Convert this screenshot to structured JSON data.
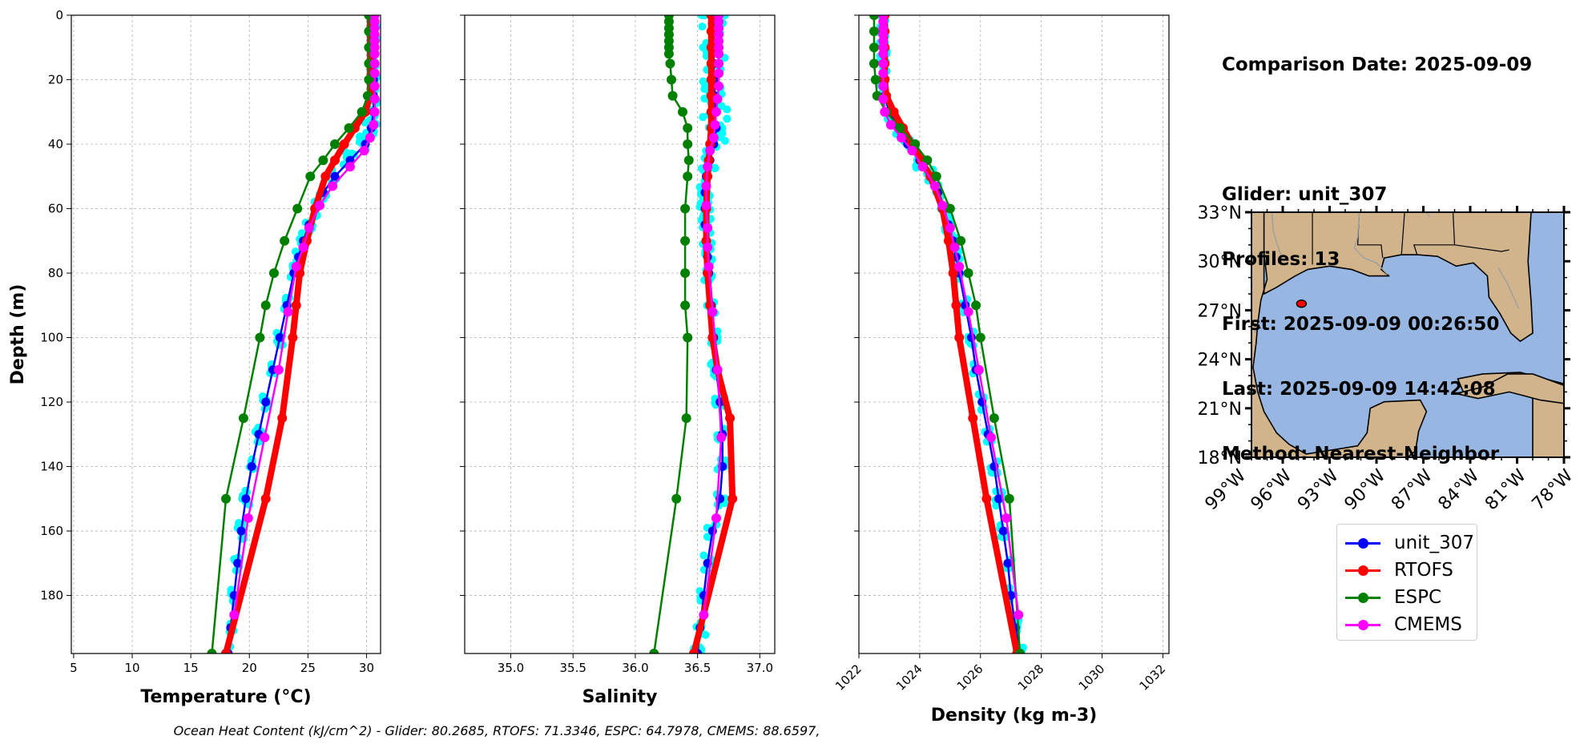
{
  "info": {
    "comparison": "Comparison Date: 2025-09-09",
    "glider": "Glider: unit_307",
    "profiles": "Profiles: 13",
    "first": "First: 2025-09-09 00:26:50",
    "last": "Last: 2025-09-09 14:42:08",
    "method": "Method: Nearest-Neighbor"
  },
  "footer": "Ocean Heat Content (kJ/cm^2) - Glider: 80.2685,  RTOFS: 71.3346,  ESPC: 64.7978,  CMEMS: 88.6597,",
  "colors": {
    "glider_scatter": "#00ffff",
    "unit_307": "#0000ff",
    "RTOFS": "#ff0000",
    "ESPC": "#008000",
    "CMEMS": "#ff00ff",
    "land": "#d2b48c",
    "ocean": "#97b6e1",
    "rivers": "#a0a0a0"
  },
  "legend": [
    "unit_307",
    "RTOFS",
    "ESPC",
    "CMEMS"
  ],
  "map": {
    "lat_labels": [
      "33°N",
      "30°N",
      "27°N",
      "24°N",
      "21°N",
      "18°N"
    ],
    "lon_labels": [
      "99°W",
      "96°W",
      "93°W",
      "90°W",
      "87°W",
      "84°W",
      "81°W",
      "78°W"
    ],
    "extent": {
      "lon": [
        -98,
        -78
      ],
      "lat": [
        18,
        33
      ]
    },
    "glider_position": {
      "lon": -94.8,
      "lat": 27.4
    }
  },
  "chart_data": [
    {
      "type": "line",
      "xlabel": "Temperature (°C)",
      "ylabel": "Depth (m)",
      "xlim": [
        4.8,
        31.2
      ],
      "ylim": [
        198,
        0
      ],
      "xticks": [
        "5",
        "10",
        "15",
        "20",
        "25",
        "30"
      ],
      "yticks": [
        "0",
        "20",
        "40",
        "60",
        "80",
        "100",
        "120",
        "140",
        "160",
        "180"
      ],
      "grid": true,
      "series": [
        {
          "name": "unit_307",
          "depth": [
            0,
            5,
            10,
            15,
            20,
            25,
            30,
            35,
            40,
            45,
            50,
            55,
            60,
            65,
            70,
            75,
            80,
            90,
            100,
            110,
            120,
            130,
            140,
            150,
            160,
            170,
            180,
            190,
            198
          ],
          "values": [
            30.6,
            30.6,
            30.6,
            30.6,
            30.6,
            30.6,
            30.6,
            30.4,
            29.9,
            28.6,
            27.3,
            26.3,
            25.6,
            25.1,
            24.6,
            24.2,
            23.8,
            23.2,
            22.6,
            22.0,
            21.4,
            20.8,
            20.2,
            19.7,
            19.3,
            19.0,
            18.7,
            18.4,
            18.2
          ]
        },
        {
          "name": "RTOFS",
          "depth": [
            0,
            5,
            10,
            15,
            20,
            25,
            30,
            35,
            40,
            45,
            50,
            60,
            70,
            80,
            90,
            100,
            125,
            150,
            198
          ],
          "values": [
            30.3,
            30.3,
            30.3,
            30.3,
            30.3,
            30.3,
            29.9,
            29.0,
            28.1,
            27.3,
            26.5,
            25.6,
            24.9,
            24.3,
            24.0,
            23.7,
            22.8,
            21.4,
            18.0
          ]
        },
        {
          "name": "ESPC",
          "depth": [
            0,
            5,
            10,
            15,
            20,
            25,
            30,
            35,
            40,
            45,
            50,
            60,
            70,
            80,
            90,
            100,
            125,
            150,
            198
          ],
          "values": [
            30.2,
            30.2,
            30.2,
            30.2,
            30.2,
            30.1,
            29.6,
            28.5,
            27.3,
            26.3,
            25.2,
            24.1,
            23.0,
            22.1,
            21.4,
            20.9,
            19.5,
            18.0,
            16.8
          ]
        },
        {
          "name": "CMEMS",
          "depth": [
            0,
            2,
            4,
            6,
            8,
            10,
            12,
            15,
            18,
            22,
            26,
            30,
            34,
            38,
            42,
            47,
            53,
            59,
            66,
            72,
            78,
            92,
            110,
            131,
            156,
            186
          ],
          "values": [
            30.7,
            30.7,
            30.7,
            30.7,
            30.7,
            30.7,
            30.7,
            30.7,
            30.7,
            30.7,
            30.7,
            30.7,
            30.6,
            30.3,
            29.8,
            28.6,
            27.1,
            26.0,
            25.1,
            24.6,
            24.0,
            23.3,
            22.5,
            21.3,
            19.9,
            18.7
          ]
        }
      ]
    },
    {
      "type": "line",
      "xlabel": "Salinity",
      "ylabel": "",
      "xlim": [
        34.63,
        37.12
      ],
      "ylim": [
        198,
        0
      ],
      "xticks": [
        "35.0",
        "35.5",
        "36.0",
        "36.5",
        "37.0"
      ],
      "grid": true,
      "series": [
        {
          "name": "unit_307",
          "depth": [
            0,
            5,
            10,
            15,
            20,
            25,
            30,
            35,
            40,
            45,
            50,
            55,
            60,
            65,
            70,
            75,
            80,
            90,
            100,
            110,
            120,
            130,
            140,
            150,
            160,
            170,
            180,
            190,
            198
          ],
          "values": [
            36.63,
            36.63,
            36.63,
            36.63,
            36.63,
            36.64,
            36.64,
            36.65,
            36.63,
            36.6,
            36.57,
            36.56,
            36.56,
            36.56,
            36.57,
            36.58,
            36.59,
            36.61,
            36.63,
            36.65,
            36.68,
            36.7,
            36.7,
            36.68,
            36.62,
            36.58,
            36.55,
            36.52,
            36.5
          ]
        },
        {
          "name": "RTOFS",
          "depth": [
            0,
            5,
            10,
            15,
            20,
            25,
            30,
            35,
            40,
            45,
            50,
            60,
            70,
            80,
            90,
            100,
            110,
            125,
            150,
            198
          ],
          "values": [
            36.61,
            36.61,
            36.61,
            36.61,
            36.61,
            36.61,
            36.61,
            36.61,
            36.6,
            36.59,
            36.58,
            36.57,
            36.57,
            36.58,
            36.6,
            36.62,
            36.66,
            36.76,
            36.78,
            36.47
          ]
        },
        {
          "name": "ESPC",
          "depth": [
            0,
            2,
            4,
            6,
            8,
            10,
            12,
            15,
            20,
            25,
            30,
            35,
            40,
            45,
            50,
            60,
            70,
            80,
            90,
            100,
            125,
            150,
            198
          ],
          "values": [
            36.27,
            36.27,
            36.27,
            36.27,
            36.27,
            36.27,
            36.27,
            36.28,
            36.29,
            36.3,
            36.38,
            36.42,
            36.42,
            36.43,
            36.42,
            36.4,
            36.4,
            36.4,
            36.4,
            36.42,
            36.41,
            36.33,
            36.15
          ]
        },
        {
          "name": "CMEMS",
          "depth": [
            0,
            2,
            4,
            6,
            8,
            10,
            12,
            15,
            18,
            22,
            26,
            30,
            34,
            38,
            42,
            47,
            53,
            59,
            66,
            72,
            78,
            92,
            110,
            131,
            156,
            186
          ],
          "values": [
            36.67,
            36.67,
            36.67,
            36.67,
            36.67,
            36.67,
            36.67,
            36.67,
            36.67,
            36.67,
            36.66,
            36.65,
            36.64,
            36.63,
            36.6,
            36.58,
            36.57,
            36.57,
            36.58,
            36.58,
            36.59,
            36.62,
            36.66,
            36.69,
            36.65,
            36.55
          ]
        }
      ]
    },
    {
      "type": "line",
      "xlabel": "Density (kg m-3)",
      "ylabel": "",
      "xlim": [
        1022,
        1032.2
      ],
      "ylim": [
        198,
        0
      ],
      "xticks": [
        "1022",
        "1024",
        "1026",
        "1028",
        "1030",
        "1032"
      ],
      "grid": true,
      "series": [
        {
          "name": "unit_307",
          "depth": [
            0,
            5,
            10,
            15,
            20,
            25,
            30,
            35,
            40,
            45,
            50,
            55,
            60,
            65,
            70,
            75,
            80,
            90,
            100,
            110,
            120,
            130,
            140,
            150,
            160,
            170,
            180,
            190,
            198
          ],
          "values": [
            1022.8,
            1022.8,
            1022.8,
            1022.8,
            1022.8,
            1022.85,
            1023.0,
            1023.3,
            1023.6,
            1024.0,
            1024.35,
            1024.6,
            1024.8,
            1024.95,
            1025.1,
            1025.2,
            1025.3,
            1025.5,
            1025.7,
            1025.85,
            1026.05,
            1026.25,
            1026.45,
            1026.6,
            1026.75,
            1026.9,
            1027.0,
            1027.15,
            1027.3
          ]
        },
        {
          "name": "RTOFS",
          "depth": [
            0,
            5,
            10,
            15,
            20,
            25,
            30,
            35,
            40,
            45,
            50,
            60,
            70,
            80,
            90,
            100,
            125,
            150,
            198
          ],
          "values": [
            1022.85,
            1022.85,
            1022.85,
            1022.85,
            1022.85,
            1022.9,
            1023.15,
            1023.45,
            1023.75,
            1024.05,
            1024.35,
            1024.75,
            1024.95,
            1025.1,
            1025.2,
            1025.3,
            1025.75,
            1026.2,
            1027.2
          ]
        },
        {
          "name": "ESPC",
          "depth": [
            0,
            5,
            10,
            15,
            20,
            25,
            30,
            35,
            40,
            45,
            50,
            60,
            70,
            80,
            90,
            100,
            125,
            150,
            198
          ],
          "values": [
            1022.5,
            1022.5,
            1022.5,
            1022.5,
            1022.55,
            1022.6,
            1022.9,
            1023.35,
            1023.85,
            1024.25,
            1024.55,
            1025.0,
            1025.35,
            1025.6,
            1025.85,
            1026.0,
            1026.45,
            1026.95,
            1027.3
          ]
        },
        {
          "name": "CMEMS",
          "depth": [
            0,
            2,
            4,
            6,
            8,
            10,
            12,
            15,
            18,
            22,
            26,
            30,
            34,
            38,
            42,
            47,
            53,
            59,
            66,
            72,
            78,
            92,
            110,
            131,
            156,
            186
          ],
          "values": [
            1022.8,
            1022.8,
            1022.8,
            1022.8,
            1022.8,
            1022.8,
            1022.8,
            1022.8,
            1022.8,
            1022.8,
            1022.8,
            1022.85,
            1023.05,
            1023.4,
            1023.75,
            1024.1,
            1024.5,
            1024.75,
            1025.0,
            1025.15,
            1025.3,
            1025.6,
            1025.95,
            1026.35,
            1026.85,
            1027.25
          ]
        }
      ]
    }
  ]
}
